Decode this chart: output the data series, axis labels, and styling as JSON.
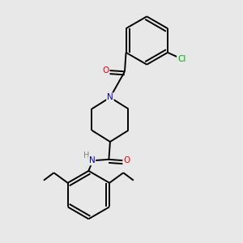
{
  "background_color": "#e8e8e8",
  "bond_color": "#000000",
  "atom_colors": {
    "N": "#0000cc",
    "O": "#ff0000",
    "Cl": "#00aa00",
    "H": "#808080"
  },
  "figsize": [
    3.0,
    3.0
  ],
  "dpi": 100
}
